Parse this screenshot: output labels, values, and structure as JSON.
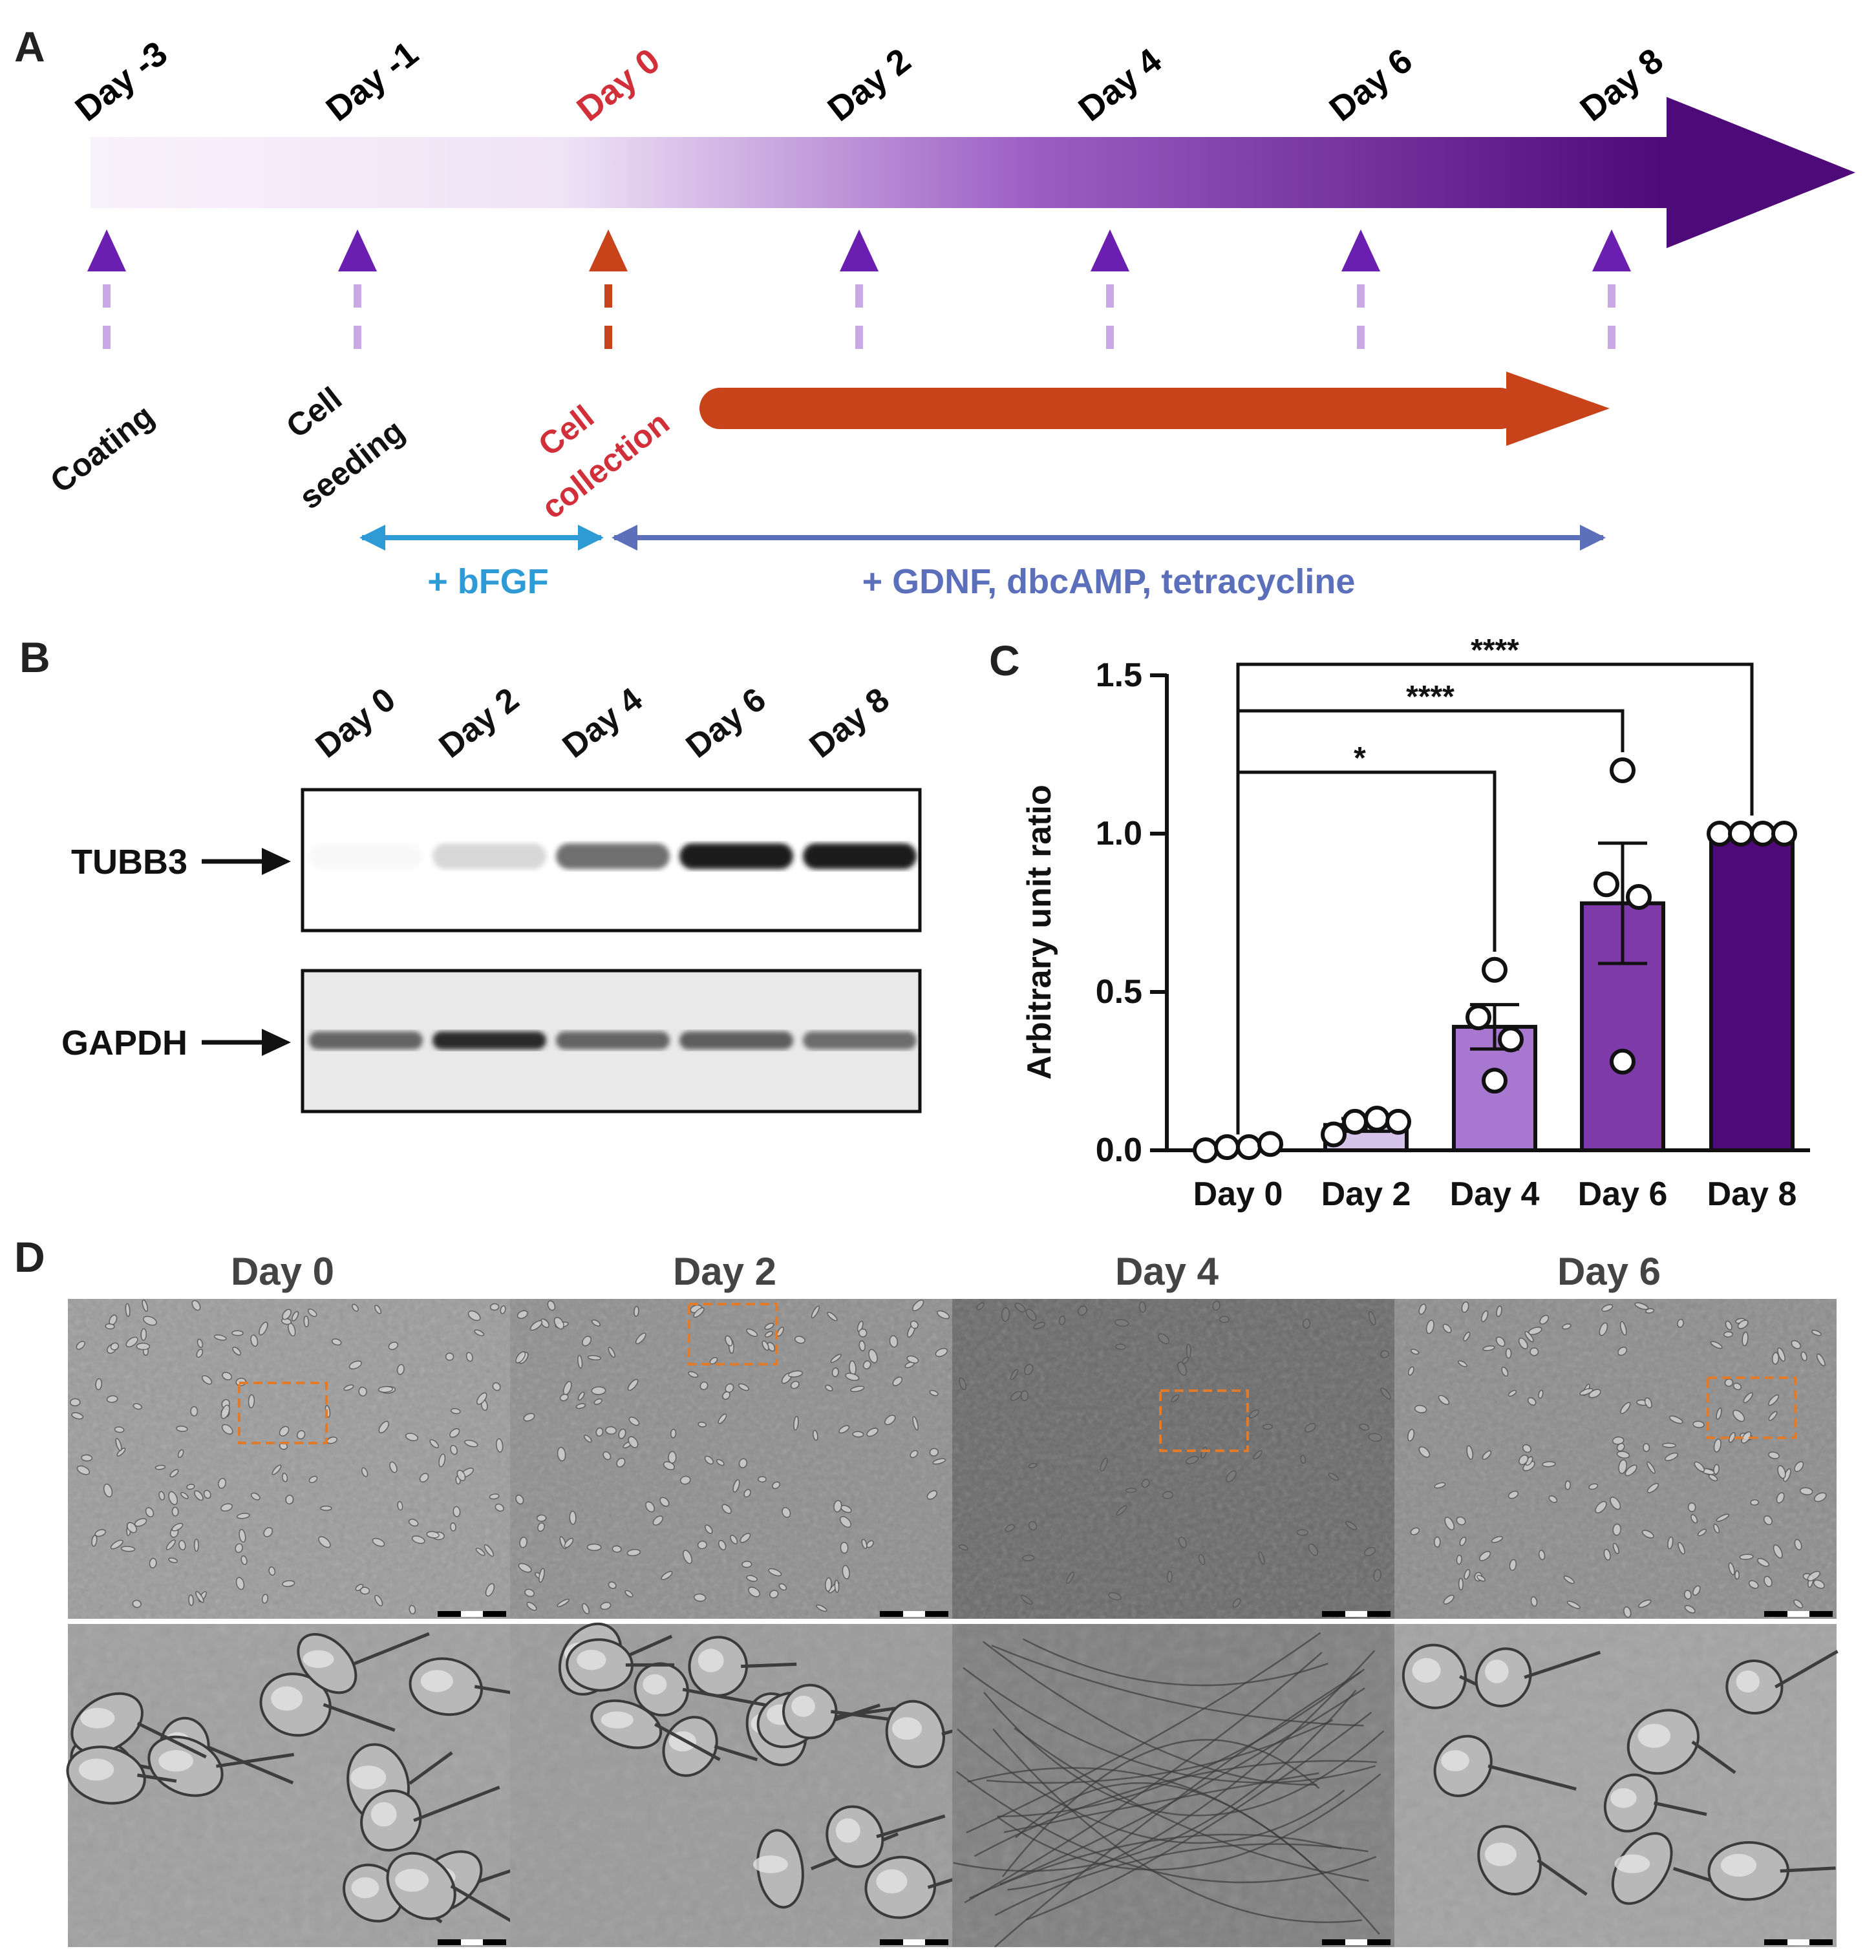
{
  "panel_labels": {
    "a": "A",
    "b": "B",
    "c": "C",
    "d": "D"
  },
  "timeline": {
    "days": [
      {
        "label": "Day -3",
        "color": "#000000"
      },
      {
        "label": "Day -1",
        "color": "#000000"
      },
      {
        "label": "Day 0",
        "color": "#d1303a"
      },
      {
        "label": "Day 2",
        "color": "#000000"
      },
      {
        "label": "Day 4",
        "color": "#000000"
      },
      {
        "label": "Day 6",
        "color": "#000000"
      },
      {
        "label": "Day 8",
        "color": "#000000"
      }
    ],
    "events": {
      "coating": "Coating",
      "seeding_line1": "Cell",
      "seeding_line2": "seeding",
      "collection_line1": "Cell",
      "collection_line2": "collection"
    },
    "treatments": {
      "bfgf": "+ bFGF",
      "differentiation": "+ GDNF, dbcAMP, tetracycline"
    },
    "colors": {
      "arrow_dark": "#4e0a78",
      "marker": "#6a1fb0",
      "marker_red": "#c8421a",
      "dashed_light": "#c9a8e6",
      "treatment_bar": "#c8421a",
      "bfgf": "#2e9bd6",
      "diff": "#5b6fbb"
    }
  },
  "western_blot": {
    "lanes": [
      "Day 0",
      "Day 2",
      "Day 4",
      "Day 6",
      "Day 8"
    ],
    "proteins": [
      "TUBB3",
      "GAPDH"
    ],
    "tubb3_intensity": [
      0.05,
      0.3,
      0.68,
      0.93,
      0.92
    ],
    "gapdh_intensity": [
      0.7,
      0.85,
      0.7,
      0.72,
      0.68
    ]
  },
  "chart_data": {
    "type": "bar",
    "categories": [
      "Day 0",
      "Day 2",
      "Day 4",
      "Day 6",
      "Day 8"
    ],
    "values": [
      0.01,
      0.08,
      0.39,
      0.78,
      1.0
    ],
    "sem": [
      0.005,
      0.02,
      0.07,
      0.19,
      0.0
    ],
    "points": [
      [
        0.0,
        0.01,
        0.01,
        0.02
      ],
      [
        0.05,
        0.09,
        0.1,
        0.09
      ],
      [
        0.57,
        0.42,
        0.35,
        0.22
      ],
      [
        1.2,
        0.84,
        0.8,
        0.28
      ],
      [
        1.0,
        1.0,
        1.0,
        1.0
      ]
    ],
    "bar_colors": [
      "#ffffff",
      "#d6c3ea",
      "#a877cf",
      "#7e3aa8",
      "#4e0a78"
    ],
    "ylabel": "Arbitrary unit ratio",
    "ylim": [
      0,
      1.5
    ],
    "yticks": [
      "0.0",
      "0.5",
      "1.0",
      "1.5"
    ],
    "significance": [
      {
        "from": "Day 0",
        "to": "Day 4",
        "label": "*"
      },
      {
        "from": "Day 0",
        "to": "Day 6",
        "label": "****"
      },
      {
        "from": "Day 0",
        "to": "Day 8",
        "label": "****"
      }
    ]
  },
  "micrographs": {
    "columns": [
      "Day 0",
      "Day 2",
      "Day 4",
      "Day 6"
    ],
    "inset_color": "#e07b2c"
  }
}
